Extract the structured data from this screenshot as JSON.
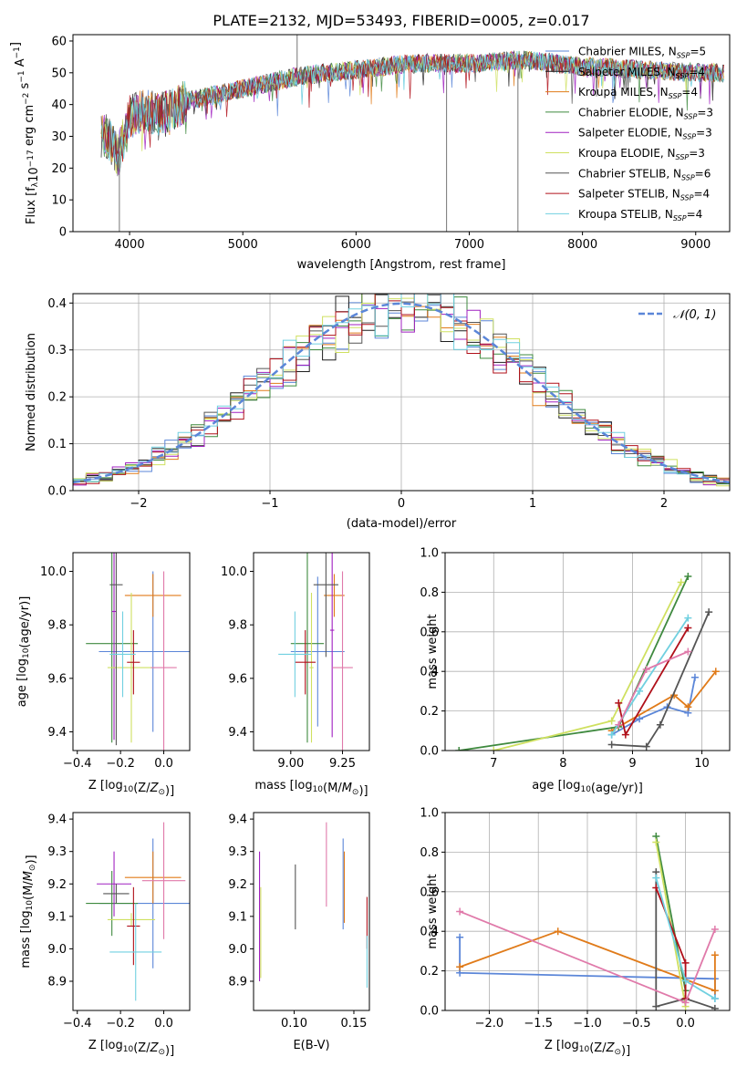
{
  "figure": {
    "title": "PLATE=2132, MJD=53493, FIBERID=0005, z=0.017"
  },
  "colors": {
    "Chabrier MILES": "#5b86d8",
    "Salpeter MILES": "#1f1f1f",
    "Kroupa MILES": "#e07b1a",
    "Chabrier ELODIE": "#3f8a3f",
    "Salpeter ELODIE": "#a020c0",
    "Kroupa ELODIE": "#cfe060",
    "Chabrier STELIB": "#555555",
    "Salpeter STELIB": "#b0101a",
    "Kroupa STELIB": "#70d0e0",
    "pink": "#e07aaa"
  },
  "chart_data": [
    {
      "id": "spectrum",
      "type": "line",
      "xlabel": "wavelength [Angstrom, rest frame]",
      "ylabel": "Flux [f_λ10^-17 erg cm^-2 s^-1 A^-1]",
      "xlim": [
        3500,
        9300
      ],
      "ylim": [
        0,
        62
      ],
      "xticks": [
        4000,
        5000,
        6000,
        7000,
        8000,
        9000
      ],
      "yticks": [
        0,
        10,
        20,
        30,
        40,
        50,
        60
      ],
      "grid": false,
      "legend_position": "right",
      "legend": [
        {
          "label": "Chabrier MILES, N",
          "sub": "SSP",
          "suffix": "=5"
        },
        {
          "label": "Salpeter MILES, N",
          "sub": "SSP",
          "suffix": "=4"
        },
        {
          "label": "Kroupa MILES, N",
          "sub": "SSP",
          "suffix": "=4"
        },
        {
          "label": "Chabrier ELODIE, N",
          "sub": "SSP",
          "suffix": "=3"
        },
        {
          "label": "Salpeter ELODIE, N",
          "sub": "SSP",
          "suffix": "=3"
        },
        {
          "label": "Kroupa ELODIE, N",
          "sub": "SSP",
          "suffix": "=3"
        },
        {
          "label": "Chabrier STELIB, N",
          "sub": "SSP",
          "suffix": "=6"
        },
        {
          "label": "Salpeter STELIB, N",
          "sub": "SSP",
          "suffix": "=4"
        },
        {
          "label": "Kroupa STELIB, N",
          "sub": "SSP",
          "suffix": "=4"
        }
      ],
      "data_envelope": {
        "x": [
          3800,
          3900,
          4000,
          4100,
          4300,
          4500,
          5000,
          5500,
          6000,
          6500,
          7000,
          7500,
          8000,
          8500,
          9000
        ],
        "y": [
          30,
          24,
          36,
          38,
          37,
          41,
          45,
          49,
          51,
          53,
          53,
          54,
          52,
          51,
          50
        ]
      },
      "spikes": [
        {
          "x": 3910,
          "y": 0
        },
        {
          "x": 5480,
          "y": 62
        },
        {
          "x": 6800,
          "y": 0
        },
        {
          "x": 7430,
          "y": 0
        }
      ]
    },
    {
      "id": "residual-hist",
      "type": "histogram",
      "xlabel": "(data-model)/error",
      "ylabel": "Normed distribution",
      "xlim": [
        -2.5,
        2.5
      ],
      "ylim": [
        0,
        0.42
      ],
      "xticks": [
        -2,
        -1,
        0,
        1,
        2
      ],
      "yticks": [
        0.0,
        0.1,
        0.2,
        0.3,
        0.4
      ],
      "grid": true,
      "legend_position": "top-right",
      "reference_curve": {
        "label": "𝒩(0, 1)",
        "mean": 0,
        "sigma": 1
      }
    },
    {
      "id": "age-vs-Z",
      "type": "errorbar",
      "xlabel": "Z [log10(Z/Z⊙)]",
      "ylabel": "age [log10(age/yr)]",
      "xlim": [
        -0.42,
        0.12
      ],
      "ylim": [
        9.33,
        10.07
      ],
      "xticks": [
        -0.4,
        -0.2,
        0.0
      ],
      "yticks": [
        9.4,
        9.6,
        9.8,
        10.0
      ],
      "points": [
        {
          "color": "Chabrier MILES",
          "x": -0.05,
          "y": 9.7,
          "xerr": 0.25,
          "yerr": 0.3
        },
        {
          "color": "Kroupa MILES",
          "x": -0.05,
          "y": 9.91,
          "xerr": 0.13,
          "yerr": 0.08
        },
        {
          "color": "Chabrier ELODIE",
          "x": -0.24,
          "y": 9.73,
          "xerr": 0.12,
          "yerr": 0.37
        },
        {
          "color": "Salpeter ELODIE",
          "x": -0.23,
          "y": 9.85,
          "xerr": 0.01,
          "yerr": 0.48
        },
        {
          "color": "Kroupa ELODIE",
          "x": -0.15,
          "y": 9.64,
          "xerr": 0.11,
          "yerr": 0.28
        },
        {
          "color": "Chabrier STELIB",
          "x": -0.22,
          "y": 9.95,
          "xerr": 0.03,
          "yerr": 0.6
        },
        {
          "color": "Salpeter STELIB",
          "x": -0.14,
          "y": 9.66,
          "xerr": 0.03,
          "yerr": 0.12
        },
        {
          "color": "Kroupa STELIB",
          "x": -0.19,
          "y": 9.69,
          "xerr": 0.06,
          "yerr": 0.16
        },
        {
          "color": "pink",
          "x": 0.0,
          "y": 9.64,
          "xerr": 0.06,
          "yerr": 0.36
        }
      ]
    },
    {
      "id": "age-vs-mass",
      "type": "errorbar",
      "xlabel": "mass [log10(M/M⊙)]",
      "xlim": [
        8.82,
        9.38
      ],
      "ylim": [
        9.33,
        10.07
      ],
      "xticks": [
        9.0,
        9.25
      ],
      "yticks": [
        9.4,
        9.6,
        9.8,
        10.0
      ],
      "points": [
        {
          "color": "Chabrier MILES",
          "x": 9.13,
          "y": 9.7,
          "xerr": 0.13,
          "yerr": 0.28
        },
        {
          "color": "Kroupa MILES",
          "x": 9.21,
          "y": 9.91,
          "xerr": 0.05,
          "yerr": 0.08
        },
        {
          "color": "Chabrier ELODIE",
          "x": 9.08,
          "y": 9.73,
          "xerr": 0.08,
          "yerr": 0.37
        },
        {
          "color": "Salpeter ELODIE",
          "x": 9.2,
          "y": 9.78,
          "xerr": 0.01,
          "yerr": 0.4
        },
        {
          "color": "Kroupa ELODIE",
          "x": 9.1,
          "y": 9.64,
          "xerr": 0.01,
          "yerr": 0.28
        },
        {
          "color": "Chabrier STELIB",
          "x": 9.17,
          "y": 9.95,
          "xerr": 0.06,
          "yerr": 0.27
        },
        {
          "color": "Salpeter STELIB",
          "x": 9.07,
          "y": 9.66,
          "xerr": 0.05,
          "yerr": 0.12
        },
        {
          "color": "Kroupa STELIB",
          "x": 9.02,
          "y": 9.69,
          "xerr": 0.08,
          "yerr": 0.16
        },
        {
          "color": "pink",
          "x": 9.25,
          "y": 9.64,
          "xerr": 0.05,
          "yerr": 0.36
        }
      ]
    },
    {
      "id": "massweight-vs-age",
      "type": "line",
      "xlabel": "age [log10(age/yr)]",
      "ylabel": "mass weight",
      "xlim": [
        6.3,
        10.4
      ],
      "ylim": [
        0,
        1
      ],
      "xticks": [
        7,
        8,
        9,
        10
      ],
      "yticks": [
        0.0,
        0.2,
        0.4,
        0.6,
        0.8,
        1.0
      ],
      "grid": true,
      "series": [
        {
          "color": "Chabrier MILES",
          "x": [
            8.7,
            9.1,
            9.5,
            9.8,
            9.9
          ],
          "y": [
            0.08,
            0.16,
            0.22,
            0.19,
            0.37
          ]
        },
        {
          "color": "Kroupa MILES",
          "x": [
            8.7,
            9.6,
            9.8,
            10.2
          ],
          "y": [
            0.1,
            0.28,
            0.22,
            0.4
          ]
        },
        {
          "color": "Chabrier ELODIE",
          "x": [
            6.5,
            8.8,
            9.8
          ],
          "y": [
            0.0,
            0.12,
            0.88
          ]
        },
        {
          "color": "Kroupa ELODIE",
          "x": [
            7.0,
            8.7,
            9.7
          ],
          "y": [
            0.0,
            0.15,
            0.85
          ]
        },
        {
          "color": "Chabrier STELIB",
          "x": [
            8.7,
            9.2,
            9.4,
            10.1
          ],
          "y": [
            0.03,
            0.02,
            0.13,
            0.7
          ]
        },
        {
          "color": "Salpeter STELIB",
          "x": [
            8.8,
            8.9,
            9.8
          ],
          "y": [
            0.24,
            0.08,
            0.62
          ]
        },
        {
          "color": "Kroupa STELIB",
          "x": [
            8.7,
            9.1,
            9.8
          ],
          "y": [
            0.08,
            0.3,
            0.67
          ]
        },
        {
          "color": "pink",
          "x": [
            8.8,
            9.2,
            9.8
          ],
          "y": [
            0.13,
            0.41,
            0.5
          ]
        }
      ]
    },
    {
      "id": "mass-vs-Z",
      "type": "errorbar",
      "xlabel": "Z [log10(Z/Z⊙)]",
      "ylabel": "mass [log10(M/M⊙)]",
      "xlim": [
        -0.42,
        0.12
      ],
      "ylim": [
        8.81,
        9.42
      ],
      "xticks": [
        -0.4,
        -0.2,
        0.0
      ],
      "yticks": [
        8.9,
        9.0,
        9.1,
        9.2,
        9.3,
        9.4
      ],
      "points": [
        {
          "color": "Chabrier MILES",
          "x": -0.05,
          "y": 9.14,
          "xerr": 0.25,
          "yerr": 0.2
        },
        {
          "color": "Kroupa MILES",
          "x": -0.05,
          "y": 9.22,
          "xerr": 0.13,
          "yerr": 0.08
        },
        {
          "color": "Chabrier ELODIE",
          "x": -0.24,
          "y": 9.14,
          "xerr": 0.12,
          "yerr": 0.1
        },
        {
          "color": "Salpeter ELODIE",
          "x": -0.23,
          "y": 9.2,
          "xerr": 0.08,
          "yerr": 0.1
        },
        {
          "color": "Kroupa ELODIE",
          "x": -0.15,
          "y": 9.09,
          "xerr": 0.11,
          "yerr": 0.02
        },
        {
          "color": "Chabrier STELIB",
          "x": -0.22,
          "y": 9.17,
          "xerr": 0.06,
          "yerr": 0.03
        },
        {
          "color": "Salpeter STELIB",
          "x": -0.14,
          "y": 9.07,
          "xerr": 0.03,
          "yerr": 0.12
        },
        {
          "color": "Kroupa STELIB",
          "x": -0.13,
          "y": 8.99,
          "xerr": 0.12,
          "yerr": 0.15
        },
        {
          "color": "pink",
          "x": 0.0,
          "y": 9.21,
          "xerr": 0.1,
          "yerr": 0.18
        }
      ]
    },
    {
      "id": "mass-vs-EBV",
      "type": "errorbar",
      "xlabel": "E(B-V)",
      "xlim": [
        0.066,
        0.163
      ],
      "ylim": [
        8.81,
        9.42
      ],
      "xticks": [
        0.1,
        0.15
      ],
      "yticks": [
        8.9,
        9.0,
        9.1,
        9.2,
        9.3,
        9.4
      ],
      "points": [
        {
          "color": "Salpeter ELODIE",
          "x": 0.071,
          "y": 9.1,
          "xerr": 0,
          "yerr": 0.2
        },
        {
          "color": "Kroupa ELODIE",
          "x": 0.072,
          "y": 9.05,
          "xerr": 0,
          "yerr": 0.14
        },
        {
          "color": "Chabrier STELIB",
          "x": 0.101,
          "y": 9.16,
          "xerr": 0,
          "yerr": 0.1
        },
        {
          "color": "pink",
          "x": 0.127,
          "y": 9.26,
          "xerr": 0,
          "yerr": 0.13
        },
        {
          "color": "Chabrier MILES",
          "x": 0.141,
          "y": 9.2,
          "xerr": 0,
          "yerr": 0.14
        },
        {
          "color": "Kroupa MILES",
          "x": 0.142,
          "y": 9.19,
          "xerr": 0,
          "yerr": 0.11
        },
        {
          "color": "Salpeter STELIB",
          "x": 0.161,
          "y": 9.08,
          "xerr": 0,
          "yerr": 0.08
        },
        {
          "color": "Kroupa STELIB",
          "x": 0.161,
          "y": 8.96,
          "xerr": 0,
          "yerr": 0.08
        }
      ]
    },
    {
      "id": "massweight-vs-Z",
      "type": "line",
      "xlabel": "Z [log10(Z/Z⊙)]",
      "ylabel": "mass weight",
      "xlim": [
        -2.45,
        0.45
      ],
      "ylim": [
        0,
        1
      ],
      "xticks": [
        -2.0,
        -1.5,
        -1.0,
        -0.5,
        0.0
      ],
      "yticks": [
        0.0,
        0.2,
        0.4,
        0.6,
        0.8,
        1.0
      ],
      "grid": true,
      "series": [
        {
          "color": "Chabrier MILES",
          "x": [
            -2.3,
            -2.3,
            0.3,
            0.3
          ],
          "y": [
            0.37,
            0.19,
            0.16,
            0.06
          ]
        },
        {
          "color": "Kroupa MILES",
          "x": [
            -2.3,
            -1.3,
            0.3,
            0.3
          ],
          "y": [
            0.22,
            0.4,
            0.1,
            0.28
          ]
        },
        {
          "color": "Chabrier ELODIE",
          "x": [
            -0.3,
            0.0
          ],
          "y": [
            0.88,
            0.1
          ]
        },
        {
          "color": "Kroupa ELODIE",
          "x": [
            -0.3,
            0.0
          ],
          "y": [
            0.85,
            0.02
          ]
        },
        {
          "color": "Chabrier STELIB",
          "x": [
            -0.3,
            -0.3,
            0.0,
            0.3
          ],
          "y": [
            0.7,
            0.02,
            0.06,
            0.01
          ]
        },
        {
          "color": "Salpeter STELIB",
          "x": [
            -0.3,
            0.0,
            0.0
          ],
          "y": [
            0.62,
            0.24,
            0.06
          ]
        },
        {
          "color": "Kroupa STELIB",
          "x": [
            -0.3,
            0.0,
            0.3
          ],
          "y": [
            0.67,
            0.15,
            0.06
          ]
        },
        {
          "color": "pink",
          "x": [
            -2.3,
            0.0,
            0.3
          ],
          "y": [
            0.5,
            0.04,
            0.41
          ]
        }
      ]
    }
  ]
}
